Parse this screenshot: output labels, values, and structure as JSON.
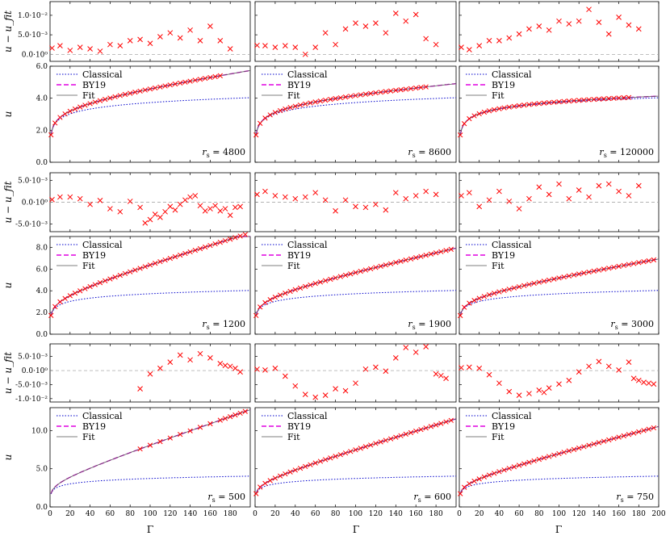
{
  "figure": {
    "x_axis_label": "Γ",
    "x_ticks_all": [
      "0",
      "20",
      "40",
      "60",
      "80",
      "100",
      "120",
      "140",
      "160",
      "180"
    ],
    "x_ticks_last": [
      "0",
      "20",
      "40",
      "60",
      "80",
      "100",
      "120",
      "140",
      "160",
      "180",
      "200"
    ],
    "xlim": [
      0,
      200
    ],
    "colors": {
      "classical": "#0000cc",
      "by19": "#e000e0",
      "fit": "#555555",
      "data": "#ff0000",
      "zero": "#999999"
    }
  },
  "chart_data": [
    {
      "type": "scatter",
      "panel": "residual",
      "row": 0,
      "col": 0,
      "ylabel": "u − u_fit",
      "yticks": [
        "1.0·10⁻²",
        "5.0·10⁻³",
        "0.0·10⁰"
      ],
      "ytick_values": [
        0.01,
        0.005,
        0
      ],
      "ylim": [
        -0.0018,
        0.0135
      ],
      "x": [
        2,
        10,
        20,
        30,
        40,
        50,
        60,
        70,
        80,
        90,
        100,
        110,
        120,
        130,
        140,
        150,
        160,
        170,
        180
      ],
      "y": [
        0.0016,
        0.0022,
        0.001,
        0.0018,
        0.0014,
        0.0008,
        0.0025,
        0.0022,
        0.0035,
        0.0038,
        0.0028,
        0.0045,
        0.0055,
        0.0042,
        0.0062,
        0.0035,
        0.0072,
        0.0035,
        0.0014
      ]
    },
    {
      "type": "scatter",
      "panel": "residual",
      "row": 0,
      "col": 1,
      "ylabel": "",
      "yticks": [],
      "ytick_values": [],
      "ylim": [
        -0.0018,
        0.0135
      ],
      "x": [
        2,
        10,
        20,
        30,
        40,
        50,
        60,
        70,
        80,
        90,
        100,
        110,
        120,
        130,
        140,
        150,
        160,
        170,
        180
      ],
      "y": [
        0.0023,
        0.0022,
        0.0018,
        0.0022,
        0.0018,
        0.0,
        0.0018,
        0.0055,
        0.0025,
        0.0065,
        0.008,
        0.0072,
        0.008,
        0.0055,
        0.0105,
        0.0085,
        0.0102,
        0.004,
        0.0025
      ]
    },
    {
      "type": "scatter",
      "panel": "residual",
      "row": 0,
      "col": 2,
      "ylabel": "",
      "yticks": [],
      "ytick_values": [],
      "ylim": [
        -0.0018,
        0.0135
      ],
      "x": [
        2,
        10,
        20,
        30,
        40,
        50,
        60,
        70,
        80,
        90,
        100,
        110,
        120,
        130,
        140,
        150,
        160,
        170,
        180
      ],
      "y": [
        0.0018,
        0.0012,
        0.0022,
        0.0035,
        0.0035,
        0.0042,
        0.0052,
        0.0065,
        0.0072,
        0.0062,
        0.0085,
        0.0078,
        0.0085,
        0.0115,
        0.0082,
        0.0052,
        0.0095,
        0.0075,
        0.0065
      ]
    },
    {
      "type": "line",
      "panel": "main",
      "row": 0,
      "col": 0,
      "ylabel": "u",
      "yticks": [
        "6.0",
        "4.0",
        "2.0",
        "0.0"
      ],
      "ytick_values": [
        6,
        4,
        2,
        0
      ],
      "ylim": [
        0,
        6
      ],
      "legend": [
        "Classical",
        "BY19",
        "Fit"
      ],
      "annotation": "r_s = 4800",
      "curve": {
        "a": 1.7,
        "b": 0.44,
        "c": 0.0085
      },
      "x": [
        1,
        5,
        10,
        15,
        20,
        25,
        30,
        35,
        40,
        45,
        50,
        55,
        60,
        65,
        70,
        75,
        80,
        85,
        90,
        95,
        100,
        105,
        110,
        115,
        120,
        125,
        130,
        135,
        140,
        145,
        150,
        155,
        160,
        165,
        170
      ]
    },
    {
      "type": "line",
      "panel": "main",
      "row": 0,
      "col": 1,
      "ylabel": "",
      "yticks": [],
      "ytick_values": [],
      "ylim": [
        0,
        6
      ],
      "legend": [
        "Classical",
        "BY19",
        "Fit"
      ],
      "annotation": "r_s = 8600",
      "curve": {
        "a": 1.7,
        "b": 0.44,
        "c": 0.0044
      },
      "x": [
        1,
        5,
        10,
        15,
        20,
        25,
        30,
        35,
        40,
        45,
        50,
        55,
        60,
        65,
        70,
        75,
        80,
        85,
        90,
        95,
        100,
        105,
        110,
        115,
        120,
        125,
        130,
        135,
        140,
        145,
        150,
        155,
        160,
        165,
        170
      ]
    },
    {
      "type": "line",
      "panel": "main",
      "row": 0,
      "col": 2,
      "ylabel": "",
      "yticks": [],
      "ytick_values": [],
      "ylim": [
        0,
        6
      ],
      "legend": [
        "Classical",
        "BY19",
        "Fit"
      ],
      "annotation": "r_s = 120000",
      "curve": {
        "a": 1.7,
        "b": 0.44,
        "c": 0.0005
      },
      "x": [
        1,
        5,
        10,
        15,
        20,
        25,
        30,
        35,
        40,
        45,
        50,
        55,
        60,
        65,
        70,
        75,
        80,
        85,
        90,
        95,
        100,
        105,
        110,
        115,
        120,
        125,
        130,
        135,
        140,
        145,
        150,
        155,
        160,
        165,
        170
      ]
    },
    {
      "type": "scatter",
      "panel": "residual",
      "row": 1,
      "col": 0,
      "ylabel": "u − u_fit",
      "yticks": [
        "5.0·10⁻³",
        "0.0·10⁰",
        "-5.0·10⁻³"
      ],
      "ytick_values": [
        0.005,
        0,
        -0.005
      ],
      "ylim": [
        -0.0068,
        0.0068
      ],
      "x": [
        2,
        10,
        20,
        30,
        40,
        50,
        60,
        70,
        80,
        90,
        95,
        100,
        105,
        110,
        115,
        120,
        125,
        130,
        135,
        140,
        145,
        150,
        155,
        160,
        165,
        170,
        175,
        180,
        185,
        190
      ],
      "y": [
        0.0006,
        0.0012,
        0.0012,
        0.0008,
        -0.0005,
        0.0004,
        -0.0015,
        -0.0022,
        0.0002,
        -0.0012,
        -0.0048,
        -0.004,
        -0.0028,
        -0.0035,
        -0.0022,
        -0.001,
        -0.0018,
        -0.0005,
        0.0005,
        0.0012,
        0.0015,
        -0.0008,
        -0.002,
        -0.0015,
        -0.0008,
        -0.002,
        -0.0015,
        -0.003,
        -0.0012,
        -0.001
      ]
    },
    {
      "type": "scatter",
      "panel": "residual",
      "row": 1,
      "col": 1,
      "ylabel": "",
      "yticks": [],
      "ytick_values": [],
      "ylim": [
        -0.0068,
        0.0068
      ],
      "x": [
        2,
        10,
        20,
        30,
        40,
        50,
        60,
        70,
        80,
        90,
        100,
        110,
        120,
        130,
        140,
        150,
        160,
        170,
        180
      ],
      "y": [
        0.0018,
        0.0025,
        0.0015,
        0.0012,
        0.0008,
        0.0012,
        0.0022,
        0.0005,
        -0.002,
        0.0005,
        -0.001,
        -0.0012,
        -0.0005,
        -0.0018,
        0.0022,
        0.0008,
        0.0015,
        0.0025,
        0.0018
      ]
    },
    {
      "type": "scatter",
      "panel": "residual",
      "row": 1,
      "col": 2,
      "ylabel": "",
      "yticks": [],
      "ytick_values": [],
      "ylim": [
        -0.0068,
        0.0068
      ],
      "x": [
        2,
        10,
        20,
        30,
        40,
        50,
        60,
        70,
        80,
        90,
        100,
        110,
        120,
        130,
        140,
        150,
        160,
        170,
        180
      ],
      "y": [
        0.0015,
        0.0022,
        -0.001,
        0.0005,
        0.0025,
        0.0002,
        -0.0015,
        0.0008,
        0.0035,
        0.0018,
        0.0042,
        0.0008,
        0.0028,
        0.0012,
        0.0038,
        0.0042,
        0.0025,
        0.0015,
        0.0038
      ]
    },
    {
      "type": "line",
      "panel": "main",
      "row": 1,
      "col": 0,
      "ylabel": "u",
      "yticks": [
        "8.0",
        "6.0",
        "4.0",
        "2.0",
        "0.0"
      ],
      "ytick_values": [
        8,
        6,
        4,
        2,
        0
      ],
      "ylim": [
        0,
        9
      ],
      "legend": [
        "Classical",
        "BY19",
        "Fit"
      ],
      "annotation": "r_s = 1200",
      "curve": {
        "a": 1.7,
        "b": 0.44,
        "c": 0.0265
      },
      "x": [
        1,
        5,
        10,
        15,
        20,
        25,
        30,
        35,
        40,
        45,
        50,
        55,
        60,
        65,
        70,
        75,
        80,
        85,
        90,
        95,
        100,
        105,
        110,
        115,
        120,
        125,
        130,
        135,
        140,
        145,
        150,
        155,
        160,
        165,
        170,
        175,
        180,
        185,
        190,
        195
      ]
    },
    {
      "type": "line",
      "panel": "main",
      "row": 1,
      "col": 1,
      "ylabel": "",
      "yticks": [],
      "ytick_values": [],
      "ylim": [
        0,
        9
      ],
      "legend": [
        "Classical",
        "BY19",
        "Fit"
      ],
      "annotation": "r_s = 1900",
      "curve": {
        "a": 1.7,
        "b": 0.44,
        "c": 0.0195
      },
      "x": [
        1,
        5,
        10,
        15,
        20,
        25,
        30,
        35,
        40,
        45,
        50,
        55,
        60,
        65,
        70,
        75,
        80,
        85,
        90,
        95,
        100,
        105,
        110,
        115,
        120,
        125,
        130,
        135,
        140,
        145,
        150,
        155,
        160,
        165,
        170,
        175,
        180,
        185,
        190,
        195
      ]
    },
    {
      "type": "line",
      "panel": "main",
      "row": 1,
      "col": 2,
      "ylabel": "",
      "yticks": [],
      "ytick_values": [],
      "ylim": [
        0,
        9
      ],
      "legend": [
        "Classical",
        "BY19",
        "Fit"
      ],
      "annotation": "r_s = 3000",
      "curve": {
        "a": 1.7,
        "b": 0.44,
        "c": 0.0145
      },
      "x": [
        1,
        5,
        10,
        15,
        20,
        25,
        30,
        35,
        40,
        45,
        50,
        55,
        60,
        65,
        70,
        75,
        80,
        85,
        90,
        95,
        100,
        105,
        110,
        115,
        120,
        125,
        130,
        135,
        140,
        145,
        150,
        155,
        160,
        165,
        170,
        175,
        180,
        185,
        190,
        195
      ]
    },
    {
      "type": "scatter",
      "panel": "residual",
      "row": 2,
      "col": 0,
      "ylabel": "u − u_fit",
      "yticks": [
        "5.0·10⁻³",
        "0.0·10⁰",
        "-5.0·10⁻³",
        "-1.0·10⁻²"
      ],
      "ytick_values": [
        0.005,
        0,
        -0.005,
        -0.01
      ],
      "ylim": [
        -0.0112,
        0.0095
      ],
      "x": [
        90,
        100,
        110,
        120,
        130,
        140,
        150,
        160,
        170,
        175,
        180,
        185,
        190
      ],
      "y": [
        -0.0065,
        -0.0012,
        0.0008,
        0.003,
        0.0055,
        0.0038,
        0.006,
        0.0045,
        0.0025,
        0.0018,
        0.0015,
        0.0008,
        -0.0005
      ]
    },
    {
      "type": "scatter",
      "panel": "residual",
      "row": 2,
      "col": 1,
      "ylabel": "",
      "yticks": [],
      "ytick_values": [],
      "ylim": [
        -0.0112,
        0.0095
      ],
      "x": [
        2,
        10,
        20,
        30,
        40,
        50,
        60,
        70,
        80,
        90,
        100,
        110,
        120,
        130,
        140,
        150,
        160,
        170,
        180,
        185,
        190
      ],
      "y": [
        0.0005,
        0.0002,
        0.0008,
        -0.002,
        -0.0055,
        -0.0085,
        -0.0095,
        -0.0088,
        -0.0065,
        -0.0072,
        -0.0045,
        0.0005,
        0.0012,
        -0.0002,
        0.0045,
        0.0082,
        0.0065,
        0.0085,
        -0.0012,
        -0.0018,
        -0.0028
      ]
    },
    {
      "type": "scatter",
      "panel": "residual",
      "row": 2,
      "col": 2,
      "ylabel": "",
      "yticks": [],
      "ytick_values": [],
      "ylim": [
        -0.0112,
        0.0095
      ],
      "x": [
        2,
        10,
        20,
        30,
        40,
        50,
        60,
        70,
        80,
        85,
        90,
        100,
        110,
        120,
        130,
        140,
        150,
        160,
        170,
        175,
        180,
        185,
        190,
        195
      ],
      "y": [
        0.001,
        0.0012,
        0.0008,
        -0.0015,
        -0.0045,
        -0.0075,
        -0.0088,
        -0.0082,
        -0.007,
        -0.0078,
        -0.0062,
        -0.0048,
        -0.0035,
        -0.0005,
        0.0015,
        0.0032,
        0.0015,
        0.0002,
        0.003,
        -0.0028,
        -0.0035,
        -0.0042,
        -0.0045,
        -0.0048
      ]
    },
    {
      "type": "line",
      "panel": "main",
      "row": 2,
      "col": 0,
      "ylabel": "u",
      "yticks": [
        "10.0",
        "5.0",
        "0.0"
      ],
      "ytick_values": [
        10,
        5,
        0
      ],
      "ylim": [
        0,
        13
      ],
      "legend": [
        "Classical",
        "BY19",
        "Fit"
      ],
      "annotation": "r_s = 500",
      "curve": {
        "a": 1.7,
        "b": 0.44,
        "c": 0.0435
      },
      "x": [
        90,
        100,
        110,
        120,
        130,
        140,
        150,
        160,
        170,
        175,
        180,
        185,
        190,
        195
      ]
    },
    {
      "type": "line",
      "panel": "main",
      "row": 2,
      "col": 1,
      "ylabel": "",
      "yticks": [],
      "ytick_values": [],
      "ylim": [
        0,
        13
      ],
      "legend": [
        "Classical",
        "BY19",
        "Fit"
      ],
      "annotation": "r_s = 600",
      "curve": {
        "a": 1.7,
        "b": 0.44,
        "c": 0.0375
      },
      "x": [
        1,
        5,
        10,
        15,
        20,
        25,
        30,
        35,
        40,
        45,
        50,
        55,
        60,
        65,
        70,
        75,
        80,
        85,
        90,
        95,
        100,
        105,
        110,
        115,
        120,
        125,
        130,
        135,
        140,
        145,
        150,
        155,
        160,
        165,
        170,
        175,
        180,
        185,
        190,
        195
      ]
    },
    {
      "type": "line",
      "panel": "main",
      "row": 2,
      "col": 2,
      "ylabel": "",
      "yticks": [],
      "ytick_values": [],
      "ylim": [
        0,
        13
      ],
      "legend": [
        "Classical",
        "BY19",
        "Fit"
      ],
      "annotation": "r_s = 750",
      "curve": {
        "a": 1.7,
        "b": 0.44,
        "c": 0.0325
      },
      "x": [
        1,
        5,
        10,
        15,
        20,
        25,
        30,
        35,
        40,
        45,
        50,
        55,
        60,
        65,
        70,
        75,
        80,
        85,
        90,
        95,
        100,
        105,
        110,
        115,
        120,
        125,
        130,
        135,
        140,
        145,
        150,
        155,
        160,
        165,
        170,
        175,
        180,
        185,
        190,
        195
      ]
    }
  ]
}
